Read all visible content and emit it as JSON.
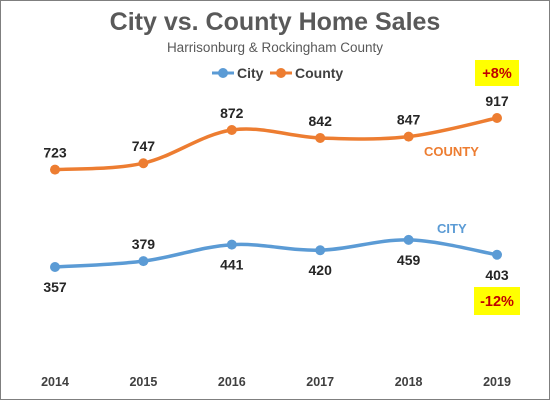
{
  "chart_data": {
    "type": "line",
    "title": "City vs. County Home Sales",
    "subtitle": "Harrisonburg & Rockingham County",
    "categories": [
      "2014",
      "2015",
      "2016",
      "2017",
      "2018",
      "2019"
    ],
    "series": [
      {
        "name": "City",
        "values": [
          357,
          379,
          441,
          420,
          459,
          403
        ],
        "color": "#5b9bd5",
        "tag": "CITY",
        "change": "-12%"
      },
      {
        "name": "County",
        "values": [
          723,
          747,
          872,
          842,
          847,
          917
        ],
        "color": "#ed7d31",
        "tag": "COUNTY",
        "change": "+8%"
      }
    ],
    "legend_position": "top",
    "grid": false,
    "smoothed": true,
    "badge_color": "#ffff00",
    "badge_text_color": "#c00000"
  }
}
